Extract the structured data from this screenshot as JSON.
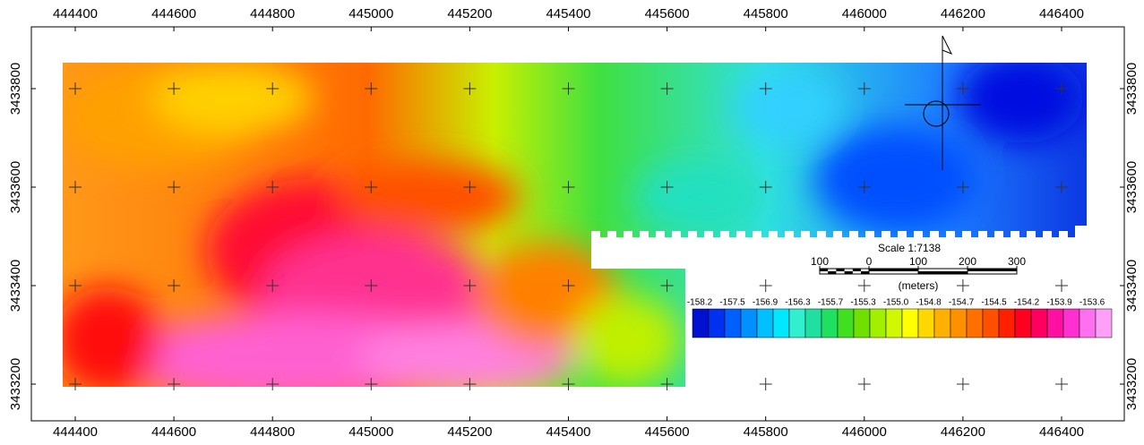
{
  "map": {
    "x_ticks": [
      444400,
      444600,
      444800,
      445000,
      445200,
      445400,
      445600,
      445800,
      446000,
      446200,
      446400
    ],
    "y_ticks": [
      3433200,
      3433400,
      3433600,
      3433800
    ],
    "scale": {
      "title": "Scale 1:7138",
      "labels": [
        "100",
        "0",
        "100",
        "200",
        "300"
      ],
      "unit": "(meters)"
    },
    "legend": {
      "labels": [
        "-158.2",
        "-157.5",
        "-156.9",
        "-156.3",
        "-155.7",
        "-155.3",
        "-155.0",
        "-154.8",
        "-154.7",
        "-154.5",
        "-154.2",
        "-153.9",
        "-153.6"
      ]
    }
  }
}
